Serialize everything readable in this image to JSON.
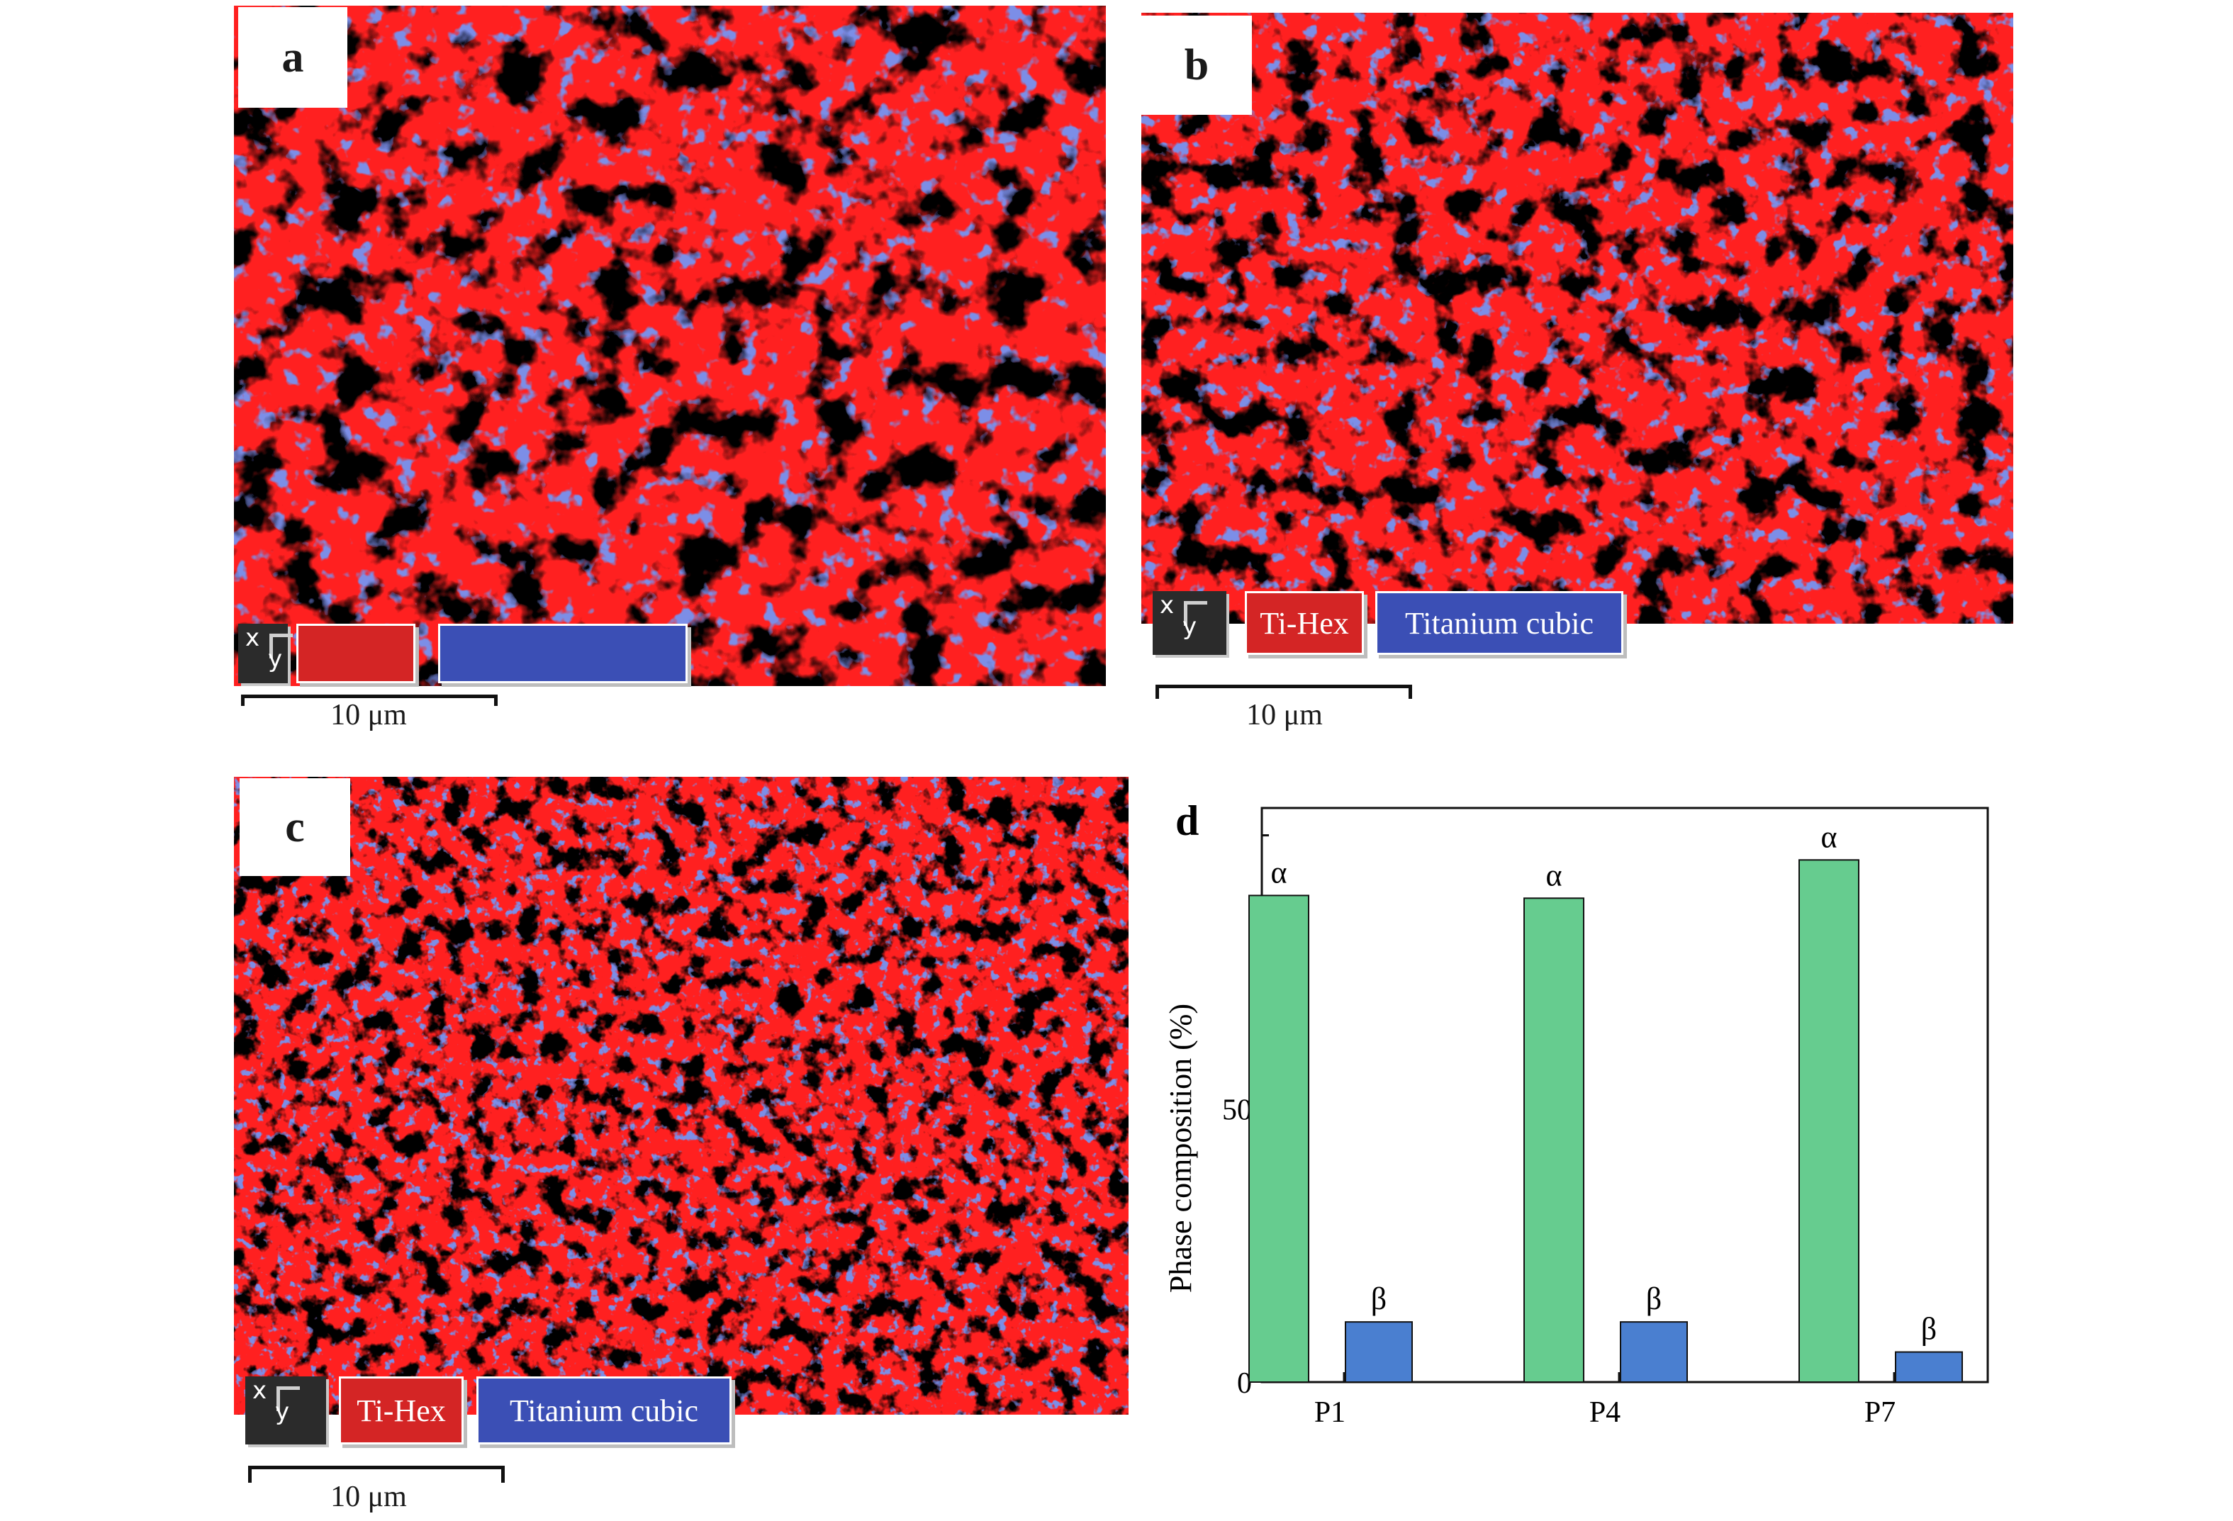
{
  "panels": {
    "a": {
      "letter": "a",
      "legend": {
        "axis_x": "x",
        "axis_y": "y",
        "hex_label": "",
        "cubic_label": ""
      },
      "scale": "10 μm"
    },
    "b": {
      "letter": "b",
      "legend": {
        "axis_x": "x",
        "axis_y": "y",
        "hex_label": "Ti-Hex",
        "cubic_label": "Titanium cubic"
      },
      "scale": "10 μm"
    },
    "c": {
      "letter": "c",
      "legend": {
        "axis_x": "x",
        "axis_y": "y",
        "hex_label": "Ti-Hex",
        "cubic_label": "Titanium cubic"
      },
      "scale": "10 μm"
    }
  },
  "colors": {
    "hex_phase": "#ff2020",
    "cubic_phase": "#3344cc",
    "boundary": "#0a0a0a",
    "hex_swatch": "#d42525",
    "cubic_swatch": "#3b4fb5",
    "alpha_bar": "#66cc8f",
    "beta_bar": "#4a7fd0"
  },
  "chart_data": {
    "type": "bar",
    "panel_letter": "d",
    "categories": [
      "P1",
      "P4",
      "P7"
    ],
    "series": [
      {
        "symbol": "α",
        "values": [
          89,
          88.5,
          95.5
        ]
      },
      {
        "symbol": "β",
        "values": [
          11,
          11,
          5.5
        ]
      }
    ],
    "ylabel": "Phase composition (%)",
    "ylim": [
      0,
      105
    ],
    "yticks": [
      0,
      50
    ],
    "grid": false
  }
}
